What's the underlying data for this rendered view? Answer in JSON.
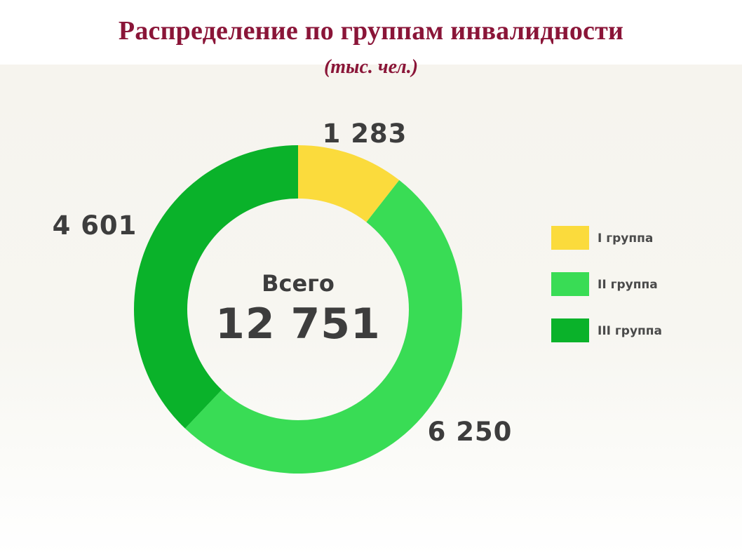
{
  "header": {
    "title": "Распределение по группам инвалидности",
    "subtitle": "(тыс. чел.)"
  },
  "chart_data": {
    "type": "pie",
    "title": "Распределение по группам инвалидности",
    "subtitle": "(тыс. чел.)",
    "center_caption": "Всего",
    "center_value": "12 751",
    "total": 12751,
    "legend_position": "right",
    "slices": [
      {
        "name": "I группа",
        "value": 1283,
        "label": "1 283",
        "color": "#fbdb3c"
      },
      {
        "name": "II группа",
        "value": 6250,
        "label": "6 250",
        "color": "#39dc55"
      },
      {
        "name": "III группа",
        "value": 4601,
        "label": "4 601",
        "color": "#0ab22a"
      }
    ]
  }
}
